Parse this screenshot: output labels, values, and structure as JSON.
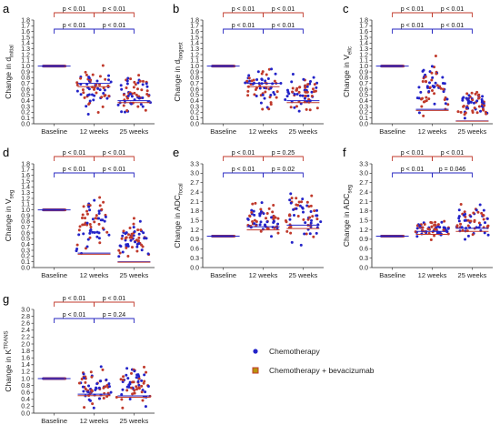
{
  "colors": {
    "chemo": "#2323c8",
    "combo": "#c0392b",
    "combo_fill": "#b7950b",
    "bracket_top": "#c0392b",
    "bracket_low": "#2424c0"
  },
  "legend": {
    "chemo": "Chemotherapy",
    "combo": "Chemotherapy + bevacizumab"
  },
  "chart_data": [
    {
      "type": "scatter",
      "panel": "a",
      "ylabel": "Change in d",
      "ylabel_sub": "initial",
      "ylabel_sup": "",
      "categories": [
        "Baseline",
        "12 weeks",
        "25 weeks"
      ],
      "yticks": [
        "0.0",
        "0.1",
        "0.2",
        "0.3",
        "0.4",
        "0.5",
        "0.6",
        "0.7",
        "0.8",
        "0.9",
        "1.0",
        "1.1",
        "1.2",
        "1.3",
        "1.4",
        "1.5",
        "1.6",
        "1.7",
        "1.8"
      ],
      "ylim": [
        0,
        1.8
      ],
      "medians": [
        1.0,
        0.7,
        0.4
      ],
      "spreads": [
        [
          1.0,
          1.0
        ],
        [
          0.1,
          1.15
        ],
        [
          0.1,
          0.98
        ]
      ],
      "comparisons": {
        "top": [
          "p < 0.01",
          "p < 0.01"
        ],
        "low": [
          "p < 0.01",
          "p < 0.01"
        ]
      }
    },
    {
      "type": "scatter",
      "panel": "b",
      "ylabel": "Change in d",
      "ylabel_sub": "longest",
      "ylabel_sup": "",
      "categories": [
        "Baseline",
        "12 weeks",
        "25 weeks"
      ],
      "yticks": [
        "0.0",
        "0.1",
        "0.2",
        "0.3",
        "0.4",
        "0.5",
        "0.6",
        "0.7",
        "0.8",
        "0.9",
        "1.0",
        "1.1",
        "1.2",
        "1.3",
        "1.4",
        "1.5",
        "1.6",
        "1.7",
        "1.8"
      ],
      "ylim": [
        0,
        1.8
      ],
      "medians": [
        1.0,
        0.7,
        0.4
      ],
      "spreads": [
        [
          1.0,
          1.0
        ],
        [
          0.1,
          1.2
        ],
        [
          0.05,
          0.95
        ]
      ],
      "comparisons": {
        "top": [
          "p < 0.01",
          "p < 0.01"
        ],
        "low": [
          "p < 0.01",
          "p < 0.01"
        ]
      }
    },
    {
      "type": "scatter",
      "panel": "c",
      "ylabel": "Change in V",
      "ylabel_sub": "ellc",
      "ylabel_sup": "",
      "categories": [
        "Baseline",
        "12 weeks",
        "25 weeks"
      ],
      "yticks": [
        "0.0",
        "0.1",
        "0.2",
        "0.3",
        "0.4",
        "0.5",
        "0.6",
        "0.7",
        "0.8",
        "0.9",
        "1.0",
        "1.1",
        "1.2",
        "1.3",
        "1.4",
        "1.5",
        "1.6",
        "1.7",
        "1.8"
      ],
      "ylim": [
        0,
        1.8
      ],
      "medians": [
        1.0,
        0.25,
        0.05
      ],
      "spreads": [
        [
          1.0,
          1.0
        ],
        [
          0.0,
          1.25
        ],
        [
          0.0,
          0.7
        ]
      ],
      "comparisons": {
        "top": [
          "p < 0.01",
          "p < 0.01"
        ],
        "low": [
          "p < 0.01",
          "p < 0.01"
        ]
      }
    },
    {
      "type": "scatter",
      "panel": "d",
      "ylabel": "Change in V",
      "ylabel_sub": "seg",
      "ylabel_sup": "",
      "categories": [
        "Baseline",
        "12 weeks",
        "25 weeks"
      ],
      "yticks": [
        "0.0",
        "0.1",
        "0.2",
        "0.3",
        "0.4",
        "0.5",
        "0.6",
        "0.7",
        "0.8",
        "0.9",
        "1.0",
        "1.1",
        "1.2",
        "1.3",
        "1.4",
        "1.5",
        "1.6",
        "1.7",
        "1.8"
      ],
      "ylim": [
        0,
        1.8
      ],
      "medians": [
        1.0,
        0.25,
        0.1
      ],
      "spreads": [
        [
          1.0,
          1.0
        ],
        [
          0.0,
          1.5
        ],
        [
          0.0,
          0.9
        ]
      ],
      "comparisons": {
        "top": [
          "p < 0.01",
          "p < 0.01"
        ],
        "low": [
          "p < 0.01",
          "p < 0.01"
        ]
      }
    },
    {
      "type": "scatter",
      "panel": "e",
      "ylabel": "Change in ADC",
      "ylabel_sub": "focal",
      "ylabel_sup": "",
      "categories": [
        "Baseline",
        "12 weeks",
        "25 weeks"
      ],
      "yticks": [
        "0.0",
        "0.3",
        "0.6",
        "0.9",
        "1.2",
        "1.5",
        "1.8",
        "2.1",
        "2.4",
        "2.7",
        "3.0",
        "3.3"
      ],
      "ylim": [
        0,
        3.3
      ],
      "medians": [
        1.0,
        1.3,
        1.35
      ],
      "spreads": [
        [
          1.0,
          1.0
        ],
        [
          0.9,
          2.2
        ],
        [
          0.5,
          2.7
        ]
      ],
      "comparisons": {
        "top": [
          "p < 0.01",
          "p = 0.25"
        ],
        "low": [
          "p < 0.01",
          "p = 0.02"
        ]
      }
    },
    {
      "type": "scatter",
      "panel": "f",
      "ylabel": "Change in ADC",
      "ylabel_sub": "seg",
      "ylabel_sup": "",
      "categories": [
        "Baseline",
        "12 weeks",
        "25 weeks"
      ],
      "yticks": [
        "0.0",
        "0.3",
        "0.6",
        "0.9",
        "1.2",
        "1.5",
        "1.8",
        "2.1",
        "2.4",
        "2.7",
        "3.0",
        "3.3"
      ],
      "ylim": [
        0,
        3.3
      ],
      "medians": [
        1.0,
        1.15,
        1.25
      ],
      "spreads": [
        [
          1.0,
          1.0
        ],
        [
          0.8,
          1.7
        ],
        [
          0.7,
          2.2
        ]
      ],
      "comparisons": {
        "top": [
          "p < 0.01",
          "p < 0.01"
        ],
        "low": [
          "p < 0.01",
          "p = 0.046"
        ]
      }
    },
    {
      "type": "scatter",
      "panel": "g",
      "ylabel": "Change in K",
      "ylabel_sub": "",
      "ylabel_sup": "TRANS",
      "categories": [
        "Baseline",
        "12 weeks",
        "25 weeks"
      ],
      "yticks": [
        "0.0",
        "0.2",
        "0.4",
        "0.6",
        "0.8",
        "1.0",
        "1.2",
        "1.4",
        "1.6",
        "1.8",
        "2.0",
        "2.2",
        "2.4",
        "2.6",
        "2.8",
        "3.0"
      ],
      "ylim": [
        0,
        3.0
      ],
      "medians": [
        1.0,
        0.55,
        0.5
      ],
      "spreads": [
        [
          1.0,
          1.0
        ],
        [
          0.0,
          1.45
        ],
        [
          0.0,
          1.7
        ]
      ],
      "comparisons": {
        "top": [
          "p < 0.01",
          "p < 0.01"
        ],
        "low": [
          "p < 0.01",
          "p = 0.24"
        ]
      }
    }
  ]
}
